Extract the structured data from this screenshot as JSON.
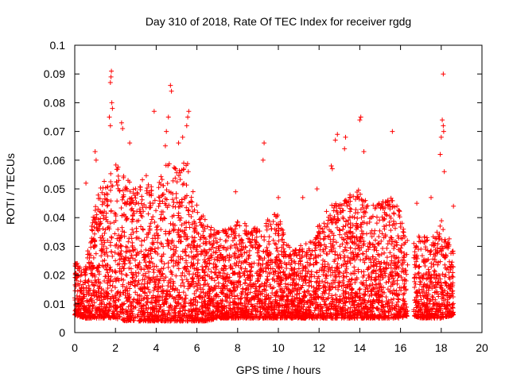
{
  "chart_data": {
    "type": "scatter",
    "title": "Day 310 of 2018, Rate Of TEC Index for receiver rgdg",
    "xlabel": "GPS time / hours",
    "ylabel": "ROTI / TECUs",
    "xlim": [
      0,
      20
    ],
    "ylim": [
      0,
      0.1
    ],
    "x_ticks": [
      "0",
      "2",
      "4",
      "6",
      "8",
      "10",
      "12",
      "14",
      "16",
      "18",
      "20"
    ],
    "y_ticks": [
      "0",
      "0.01",
      "0.02",
      "0.03",
      "0.04",
      "0.05",
      "0.06",
      "0.07",
      "0.08",
      "0.09",
      "0.1"
    ],
    "grid": false,
    "marker": "+",
    "series": [
      {
        "color": "#ff0000",
        "x_range": [
          0,
          18.6
        ],
        "envelope": [
          {
            "x": 0.0,
            "low": 0.006,
            "high": 0.025
          },
          {
            "x": 0.5,
            "low": 0.005,
            "high": 0.022
          },
          {
            "x": 1.0,
            "low": 0.005,
            "high": 0.045
          },
          {
            "x": 1.5,
            "low": 0.005,
            "high": 0.055
          },
          {
            "x": 2.0,
            "low": 0.005,
            "high": 0.06
          },
          {
            "x": 2.5,
            "low": 0.004,
            "high": 0.055
          },
          {
            "x": 3.0,
            "low": 0.004,
            "high": 0.05
          },
          {
            "x": 3.5,
            "low": 0.004,
            "high": 0.055
          },
          {
            "x": 4.0,
            "low": 0.004,
            "high": 0.05
          },
          {
            "x": 4.5,
            "low": 0.004,
            "high": 0.06
          },
          {
            "x": 5.0,
            "low": 0.004,
            "high": 0.058
          },
          {
            "x": 5.5,
            "low": 0.004,
            "high": 0.06
          },
          {
            "x": 6.0,
            "low": 0.004,
            "high": 0.045
          },
          {
            "x": 6.5,
            "low": 0.004,
            "high": 0.038
          },
          {
            "x": 7.0,
            "low": 0.005,
            "high": 0.035
          },
          {
            "x": 7.5,
            "low": 0.005,
            "high": 0.036
          },
          {
            "x": 8.0,
            "low": 0.005,
            "high": 0.04
          },
          {
            "x": 8.5,
            "low": 0.005,
            "high": 0.038
          },
          {
            "x": 9.0,
            "low": 0.005,
            "high": 0.036
          },
          {
            "x": 9.5,
            "low": 0.005,
            "high": 0.04
          },
          {
            "x": 10.0,
            "low": 0.005,
            "high": 0.042
          },
          {
            "x": 10.5,
            "low": 0.005,
            "high": 0.03
          },
          {
            "x": 11.0,
            "low": 0.005,
            "high": 0.03
          },
          {
            "x": 11.5,
            "low": 0.005,
            "high": 0.032
          },
          {
            "x": 12.0,
            "low": 0.005,
            "high": 0.038
          },
          {
            "x": 12.5,
            "low": 0.005,
            "high": 0.045
          },
          {
            "x": 13.0,
            "low": 0.005,
            "high": 0.045
          },
          {
            "x": 13.5,
            "low": 0.005,
            "high": 0.048
          },
          {
            "x": 14.0,
            "low": 0.005,
            "high": 0.05
          },
          {
            "x": 14.5,
            "low": 0.005,
            "high": 0.045
          },
          {
            "x": 15.0,
            "low": 0.005,
            "high": 0.045
          },
          {
            "x": 15.5,
            "low": 0.005,
            "high": 0.048
          },
          {
            "x": 16.0,
            "low": 0.005,
            "high": 0.042
          },
          {
            "x": 16.5,
            "low": 0.006,
            "high": 0.03
          },
          {
            "x": 17.0,
            "low": 0.005,
            "high": 0.035
          },
          {
            "x": 17.5,
            "low": 0.005,
            "high": 0.032
          },
          {
            "x": 18.0,
            "low": 0.005,
            "high": 0.04
          },
          {
            "x": 18.6,
            "low": 0.006,
            "high": 0.03
          }
        ],
        "outliers": [
          {
            "x": 1.8,
            "y": 0.091
          },
          {
            "x": 1.78,
            "y": 0.089
          },
          {
            "x": 1.75,
            "y": 0.087
          },
          {
            "x": 1.82,
            "y": 0.08
          },
          {
            "x": 1.85,
            "y": 0.078
          },
          {
            "x": 1.7,
            "y": 0.075
          },
          {
            "x": 1.75,
            "y": 0.072
          },
          {
            "x": 2.3,
            "y": 0.073
          },
          {
            "x": 2.35,
            "y": 0.071
          },
          {
            "x": 2.7,
            "y": 0.066
          },
          {
            "x": 3.9,
            "y": 0.077
          },
          {
            "x": 4.7,
            "y": 0.086
          },
          {
            "x": 4.75,
            "y": 0.084
          },
          {
            "x": 4.6,
            "y": 0.075
          },
          {
            "x": 4.5,
            "y": 0.07
          },
          {
            "x": 4.45,
            "y": 0.065
          },
          {
            "x": 5.6,
            "y": 0.077
          },
          {
            "x": 5.55,
            "y": 0.075
          },
          {
            "x": 5.5,
            "y": 0.072
          },
          {
            "x": 5.3,
            "y": 0.068
          },
          {
            "x": 5.1,
            "y": 0.066
          },
          {
            "x": 1.0,
            "y": 0.063
          },
          {
            "x": 1.05,
            "y": 0.06
          },
          {
            "x": 0.55,
            "y": 0.052
          },
          {
            "x": 9.3,
            "y": 0.066
          },
          {
            "x": 9.25,
            "y": 0.06
          },
          {
            "x": 12.9,
            "y": 0.069
          },
          {
            "x": 12.8,
            "y": 0.067
          },
          {
            "x": 12.6,
            "y": 0.058
          },
          {
            "x": 12.65,
            "y": 0.057
          },
          {
            "x": 13.3,
            "y": 0.068
          },
          {
            "x": 13.25,
            "y": 0.064
          },
          {
            "x": 14.05,
            "y": 0.075
          },
          {
            "x": 14.0,
            "y": 0.074
          },
          {
            "x": 14.2,
            "y": 0.063
          },
          {
            "x": 15.6,
            "y": 0.07
          },
          {
            "x": 18.1,
            "y": 0.09
          },
          {
            "x": 18.05,
            "y": 0.074
          },
          {
            "x": 18.1,
            "y": 0.072
          },
          {
            "x": 18.12,
            "y": 0.07
          },
          {
            "x": 18.0,
            "y": 0.068
          },
          {
            "x": 17.95,
            "y": 0.062
          },
          {
            "x": 18.15,
            "y": 0.056
          },
          {
            "x": 18.6,
            "y": 0.044
          },
          {
            "x": 16.8,
            "y": 0.045
          },
          {
            "x": 17.5,
            "y": 0.047
          },
          {
            "x": 11.2,
            "y": 0.047
          },
          {
            "x": 11.9,
            "y": 0.05
          },
          {
            "x": 10.0,
            "y": 0.047
          },
          {
            "x": 7.9,
            "y": 0.049
          }
        ]
      }
    ]
  }
}
